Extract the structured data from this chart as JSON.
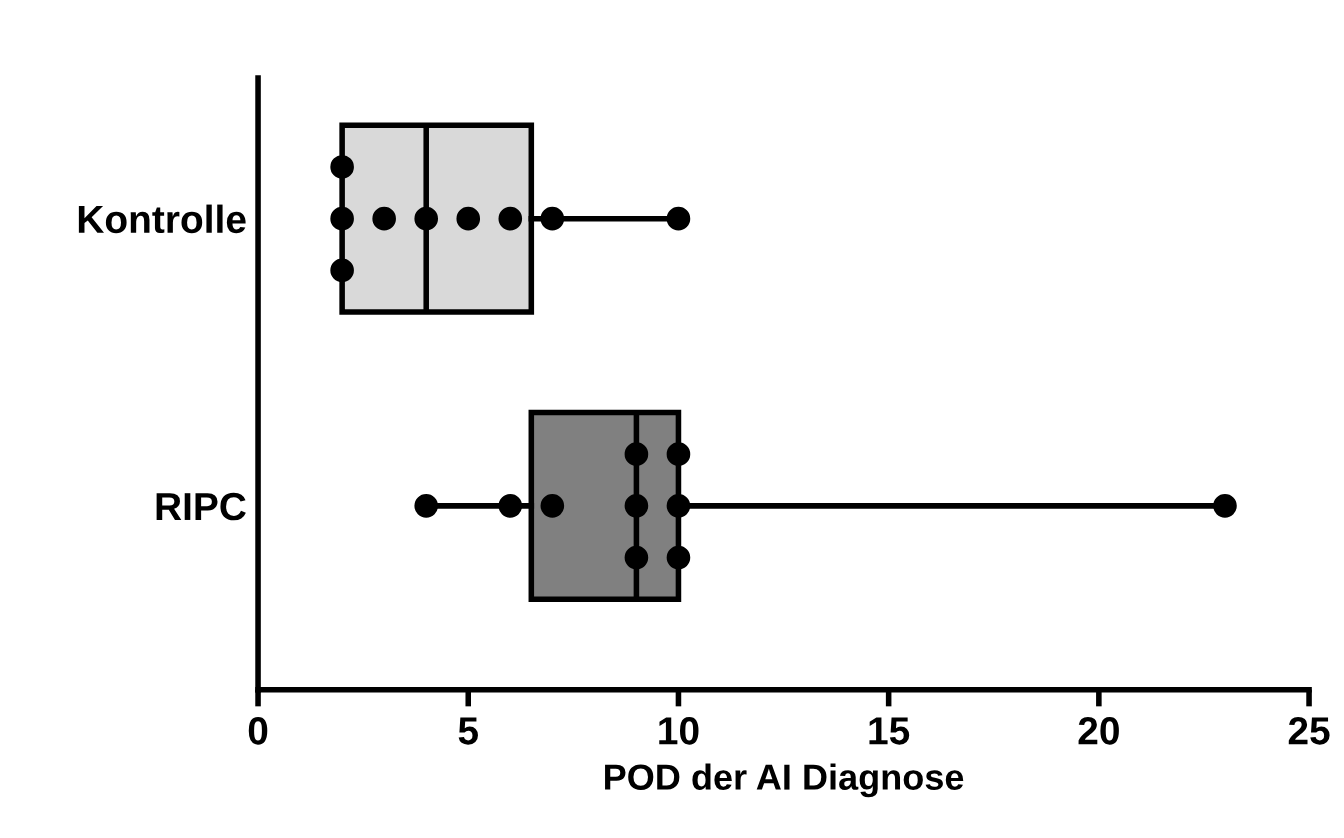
{
  "chart_data": {
    "type": "box",
    "orientation": "horizontal",
    "xlabel": "POD der AI Diagnose",
    "categories": [
      "Kontrolle",
      "RIPC"
    ],
    "xlim": [
      0,
      25
    ],
    "xticks": [
      0,
      5,
      10,
      15,
      20,
      25
    ],
    "grid": false,
    "legend": false,
    "series": [
      {
        "colors": [
          "#d9d9d9",
          "#808080"
        ],
        "boxes": [
          {
            "low": 2,
            "q1": 2,
            "median": 4,
            "q3": 6.5,
            "high": 10
          },
          {
            "low": 4,
            "q1": 6.5,
            "median": 9,
            "q3": 10,
            "high": 23
          }
        ]
      },
      {
        "type": "scatter",
        "color": "#000000",
        "marker": "circle",
        "x": [
          "Kontrolle",
          "Kontrolle",
          "Kontrolle",
          "Kontrolle",
          "Kontrolle",
          "Kontrolle",
          "Kontrolle",
          "Kontrolle",
          "Kontrolle",
          "RIPC",
          "RIPC",
          "RIPC",
          "RIPC",
          "RIPC",
          "RIPC",
          "RIPC",
          "RIPC",
          "RIPC",
          "RIPC"
        ],
        "values": [
          2,
          2,
          2,
          3,
          4,
          5,
          6,
          7,
          10,
          4,
          6,
          7,
          9,
          9,
          9,
          10,
          10,
          10,
          23
        ]
      }
    ]
  }
}
